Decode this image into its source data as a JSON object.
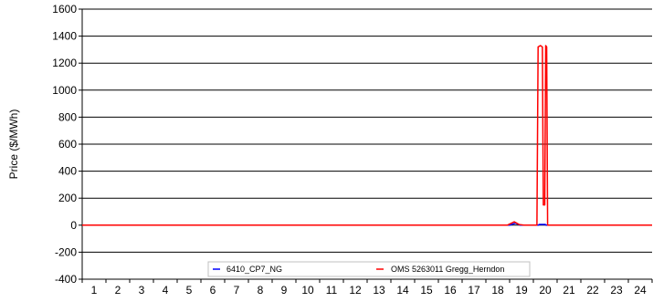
{
  "chart_data": {
    "type": "line",
    "title": "",
    "xlabel": "",
    "ylabel": "Price ($/MWh)",
    "x_ticks": [
      "1",
      "2",
      "3",
      "4",
      "5",
      "6",
      "7",
      "8",
      "9",
      "10",
      "11",
      "12",
      "13",
      "14",
      "15",
      "16",
      "17",
      "18",
      "19",
      "20",
      "21",
      "22",
      "23",
      "24"
    ],
    "xlim": [
      1,
      25
    ],
    "ylim": [
      -400,
      1600
    ],
    "y_ticks": [
      -400,
      -200,
      0,
      200,
      400,
      600,
      800,
      1000,
      1200,
      1400,
      1600
    ],
    "grid": "horizontal",
    "legend_position": "bottom",
    "series": [
      {
        "name": "6410_CP7_NG",
        "color": "#0000ff",
        "points": [
          [
            1,
            0
          ],
          [
            19.0,
            0
          ],
          [
            19.25,
            15
          ],
          [
            19.45,
            0
          ],
          [
            20.2,
            0
          ],
          [
            20.25,
            5
          ],
          [
            20.5,
            5
          ],
          [
            20.55,
            0
          ],
          [
            25,
            0
          ]
        ]
      },
      {
        "name": "OMS 5263011 Gregg_Herndon",
        "color": "#ff0000",
        "points": [
          [
            1,
            0
          ],
          [
            18.9,
            0
          ],
          [
            19.2,
            25
          ],
          [
            19.4,
            5
          ],
          [
            19.6,
            0
          ],
          [
            20.15,
            0
          ],
          [
            20.2,
            1320
          ],
          [
            20.3,
            1330
          ],
          [
            20.38,
            1320
          ],
          [
            20.42,
            150
          ],
          [
            20.48,
            150
          ],
          [
            20.52,
            1330
          ],
          [
            20.56,
            1320
          ],
          [
            20.6,
            0
          ],
          [
            25,
            0
          ]
        ]
      }
    ]
  }
}
